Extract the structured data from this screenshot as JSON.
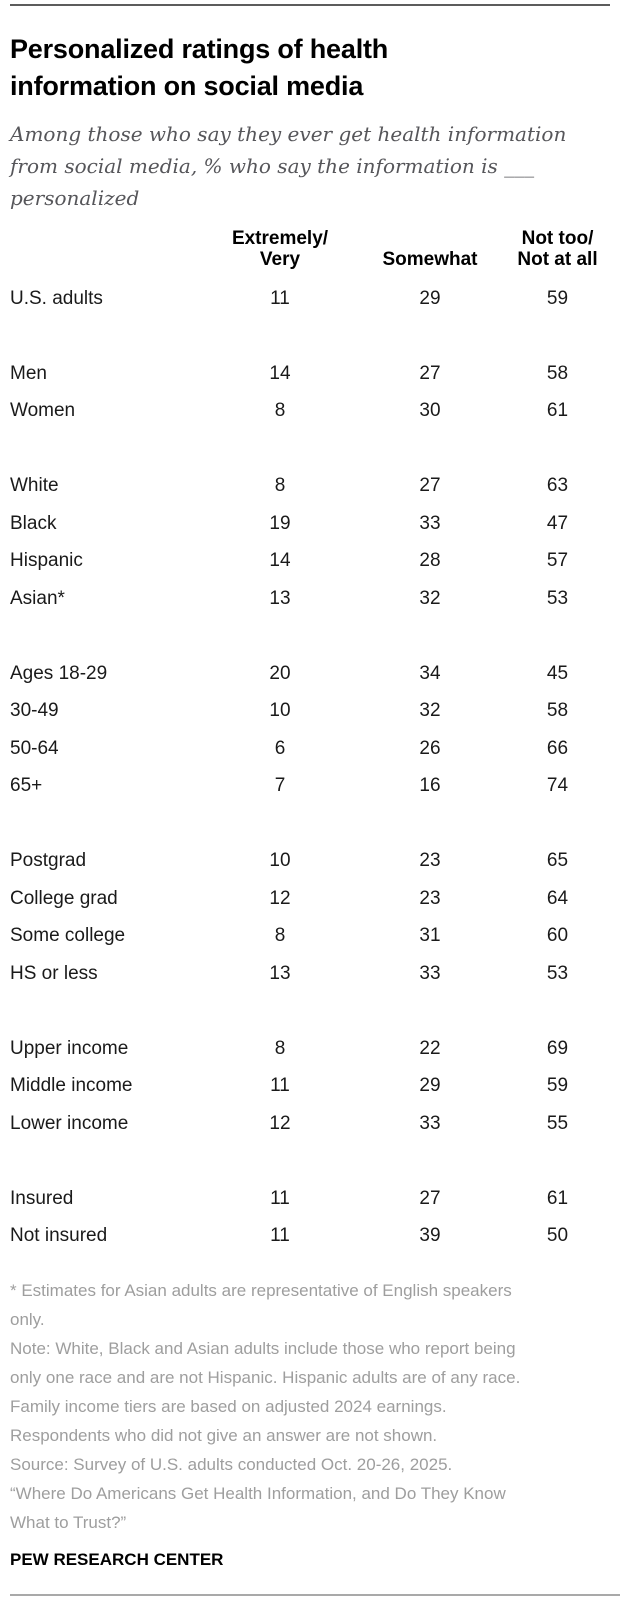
{
  "page": {
    "title": "Personalized ratings of health\ninformation on social media",
    "subtitle": "Among those who say they ever get health information\nfrom social media, % who say the information is ___\npersonalized",
    "brand": "PEW RESEARCH CENTER"
  },
  "chart_data": {
    "type": "table",
    "title": "Personalized ratings of health information on social media",
    "subtitle": "Among those who say they ever get health information from social media, % who say the information is ___ personalized",
    "unit": "% of U.S. adults",
    "columns": [
      "Extremely/Very",
      "Somewhat",
      "Not too/Not at all"
    ],
    "column_headers_display": [
      "Extremely/\nVery",
      "Somewhat",
      "Not too/\nNot at all"
    ],
    "groups": [
      {
        "rows": [
          {
            "label": "U.S. adults",
            "values": [
              11,
              29,
              59
            ]
          }
        ]
      },
      {
        "rows": [
          {
            "label": "Men",
            "values": [
              14,
              27,
              58
            ]
          },
          {
            "label": "Women",
            "values": [
              8,
              30,
              61
            ]
          }
        ]
      },
      {
        "rows": [
          {
            "label": "White",
            "values": [
              8,
              27,
              63
            ]
          },
          {
            "label": "Black",
            "values": [
              19,
              33,
              47
            ]
          },
          {
            "label": "Hispanic",
            "values": [
              14,
              28,
              57
            ]
          },
          {
            "label": "Asian*",
            "values": [
              13,
              32,
              53
            ]
          }
        ]
      },
      {
        "rows": [
          {
            "label": "Ages 18-29",
            "values": [
              20,
              34,
              45
            ]
          },
          {
            "label": "30-49",
            "values": [
              10,
              32,
              58
            ]
          },
          {
            "label": "50-64",
            "values": [
              6,
              26,
              66
            ]
          },
          {
            "label": "65+",
            "values": [
              7,
              16,
              74
            ]
          }
        ]
      },
      {
        "rows": [
          {
            "label": "Postgrad",
            "values": [
              10,
              23,
              65
            ]
          },
          {
            "label": "College grad",
            "values": [
              12,
              23,
              64
            ]
          },
          {
            "label": "Some college",
            "values": [
              8,
              31,
              60
            ]
          },
          {
            "label": "HS or less",
            "values": [
              13,
              33,
              53
            ]
          }
        ]
      },
      {
        "rows": [
          {
            "label": "Upper income",
            "values": [
              8,
              22,
              69
            ]
          },
          {
            "label": "Middle income",
            "values": [
              11,
              29,
              59
            ]
          },
          {
            "label": "Lower income",
            "values": [
              12,
              33,
              55
            ]
          }
        ]
      },
      {
        "rows": [
          {
            "label": "Insured",
            "values": [
              11,
              27,
              61
            ]
          },
          {
            "label": "Not insured",
            "values": [
              11,
              39,
              50
            ]
          }
        ]
      }
    ]
  },
  "notes": {
    "asterisk": "* Estimates for Asian adults are representative of English speakers\nonly.",
    "note": "Note: White, Black and Asian adults include those who report being\nonly one race and are not Hispanic. Hispanic adults are of any race.\nFamily income tiers are based on adjusted 2024 earnings.\nRespondents who did not give an answer are not shown.",
    "source": "Source: Survey of U.S. adults conducted Oct. 20-26, 2025.",
    "quote": "“Where Do Americans Get Health Information, and Do They Know\nWhat to Trust?”"
  },
  "colors": {
    "title_text": "#000000",
    "body_text": "#1a1a1a",
    "subtitle_text": "#56565a",
    "notes_text": "#9e9e9e",
    "rule_top": "#5c5c5c",
    "rule_bottom": "#a9a9a9"
  }
}
